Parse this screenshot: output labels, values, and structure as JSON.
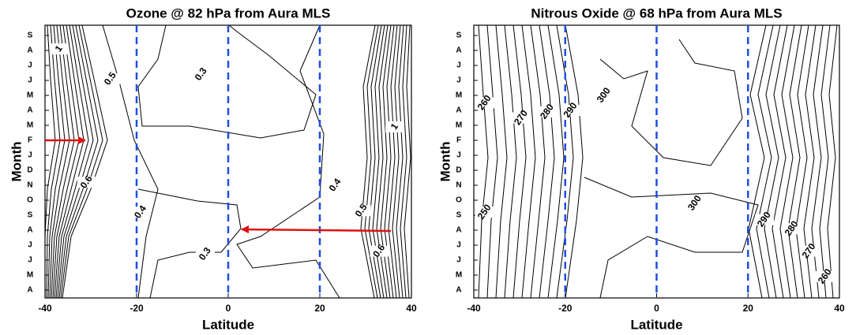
{
  "chart_data": [
    {
      "type": "contour",
      "title": "Ozone @ 82 hPa from Aura MLS",
      "xlabel": "Latitude",
      "ylabel": "Month",
      "xlim": [
        -40,
        40
      ],
      "xticks": [
        -40,
        -20,
        0,
        20,
        40
      ],
      "categories": [
        "A",
        "M",
        "J",
        "J",
        "A",
        "S",
        "O",
        "N",
        "D",
        "J",
        "F",
        "M",
        "A",
        "M",
        "J",
        "J",
        "A",
        "S"
      ],
      "vlines": [
        -20,
        0,
        20
      ],
      "vline_color": "#1f4fe0",
      "contour_labels": [
        {
          "level": 1,
          "x": -36.9,
          "y": 16.1
        },
        {
          "level": 0.5,
          "x": -25.7,
          "y": 14.1
        },
        {
          "level": 0.3,
          "x": -5.9,
          "y": 14.4
        },
        {
          "level": 0.6,
          "x": -30.9,
          "y": 7.2
        },
        {
          "level": 0.4,
          "x": -19.1,
          "y": 5.2
        },
        {
          "level": 0.3,
          "x": -5,
          "y": 2.4
        },
        {
          "level": 0.4,
          "x": 23.4,
          "y": 7
        },
        {
          "level": 0.5,
          "x": 29.1,
          "y": 5.3
        },
        {
          "level": 0.6,
          "x": 33,
          "y": 2.6
        },
        {
          "level": 1,
          "x": 36.4,
          "y": 10.9
        }
      ]
    },
    {
      "type": "contour",
      "title": "Nitrous Oxide @ 68 hPa from Aura MLS",
      "xlabel": "Latitude",
      "ylabel": "Month",
      "xlim": [
        -40,
        40
      ],
      "xticks": [
        -40,
        -20,
        0,
        20,
        40
      ],
      "categories": [
        "A",
        "M",
        "J",
        "J",
        "A",
        "S",
        "O",
        "N",
        "D",
        "J",
        "F",
        "M",
        "A",
        "M",
        "J",
        "J",
        "A",
        "S"
      ],
      "vlines": [
        -20,
        0,
        20
      ],
      "vline_color": "#1f4fe0",
      "contour_labels": [
        {
          "level": 260,
          "x": -37.6,
          "y": 12.5
        },
        {
          "level": 270,
          "x": -29.6,
          "y": 11.5
        },
        {
          "level": 280,
          "x": -23.9,
          "y": 11.9
        },
        {
          "level": 290,
          "x": -18.8,
          "y": 12
        },
        {
          "level": 300,
          "x": -11.5,
          "y": 13
        },
        {
          "level": 250,
          "x": -37.6,
          "y": 5.2
        },
        {
          "level": 300,
          "x": 8.4,
          "y": 5.8
        },
        {
          "level": 290,
          "x": 23.6,
          "y": 4.7
        },
        {
          "level": 280,
          "x": 29.6,
          "y": 4.1
        },
        {
          "level": 270,
          "x": 33.4,
          "y": 2.6
        },
        {
          "level": 260,
          "x": 36.9,
          "y": 0.9
        }
      ]
    }
  ]
}
